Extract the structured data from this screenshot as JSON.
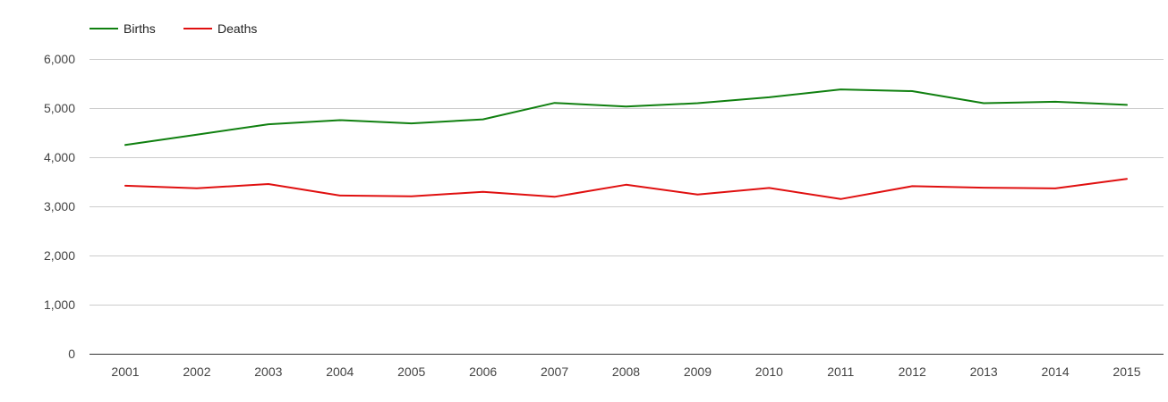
{
  "chart_data": {
    "type": "line",
    "title": "",
    "xlabel": "",
    "ylabel": "",
    "categories": [
      "2001",
      "2002",
      "2003",
      "2004",
      "2005",
      "2006",
      "2007",
      "2008",
      "2009",
      "2010",
      "2011",
      "2012",
      "2013",
      "2014",
      "2015"
    ],
    "series": [
      {
        "name": "Births",
        "color": "#108010",
        "values": [
          4250,
          4460,
          4670,
          4755,
          4690,
          4770,
          5105,
          5030,
          5100,
          5220,
          5380,
          5345,
          5100,
          5130,
          5065
        ]
      },
      {
        "name": "Deaths",
        "color": "#e01010",
        "values": [
          3420,
          3370,
          3455,
          3220,
          3205,
          3295,
          3195,
          3440,
          3240,
          3375,
          3150,
          3410,
          3380,
          3365,
          3560
        ]
      }
    ],
    "ylim": [
      0,
      6000
    ],
    "yticks": [
      {
        "value": 0,
        "label": "0"
      },
      {
        "value": 1000,
        "label": "1,000"
      },
      {
        "value": 2000,
        "label": "2,000"
      },
      {
        "value": 3000,
        "label": "3,000"
      },
      {
        "value": 4000,
        "label": "4,000"
      },
      {
        "value": 5000,
        "label": "5,000"
      },
      {
        "value": 6000,
        "label": "6,000"
      }
    ],
    "grid": true,
    "legend_position": "top-left",
    "colors": {
      "grid": "#cccccc",
      "axis": "#333333"
    }
  }
}
